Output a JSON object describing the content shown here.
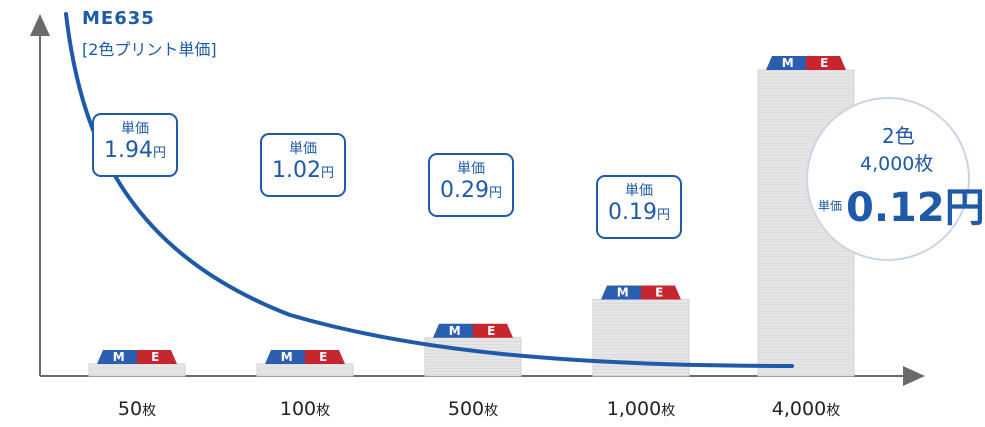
{
  "header": {
    "title": "ME635",
    "subtitle": "[2色プリント単価]"
  },
  "colors": {
    "accent": "#1e5aa8",
    "logo_blue": "#2a5fb0",
    "logo_red": "#c8262e",
    "axis": "#6b6b6b"
  },
  "chart_data": {
    "type": "bar",
    "categories": [
      "50枚",
      "100枚",
      "500枚",
      "1,000枚",
      "4,000枚"
    ],
    "quantities": [
      50,
      100,
      500,
      1000,
      4000
    ],
    "unit_prices": [
      1.94,
      1.02,
      0.29,
      0.19,
      0.12
    ],
    "price_label": "単価",
    "price_unit": "円",
    "category_unit": "枚",
    "bar_icon_letters": [
      "M",
      "E"
    ],
    "line": "unit price curve (decreasing)",
    "grid": false
  },
  "boxes": [
    {
      "label": "単価",
      "value": "1.94",
      "unit": "円"
    },
    {
      "label": "単価",
      "value": "1.02",
      "unit": "円"
    },
    {
      "label": "単価",
      "value": "0.29",
      "unit": "円"
    },
    {
      "label": "単価",
      "value": "0.19",
      "unit": "円"
    }
  ],
  "xlabels": [
    {
      "num": "50",
      "unit": "枚"
    },
    {
      "num": "100",
      "unit": "枚"
    },
    {
      "num": "500",
      "unit": "枚"
    },
    {
      "num": "1,000",
      "unit": "枚"
    },
    {
      "num": "4,000",
      "unit": "枚"
    }
  ],
  "highlight": {
    "line1": "2色",
    "line2": "4,000枚",
    "label": "単価",
    "value": "0.12円"
  }
}
